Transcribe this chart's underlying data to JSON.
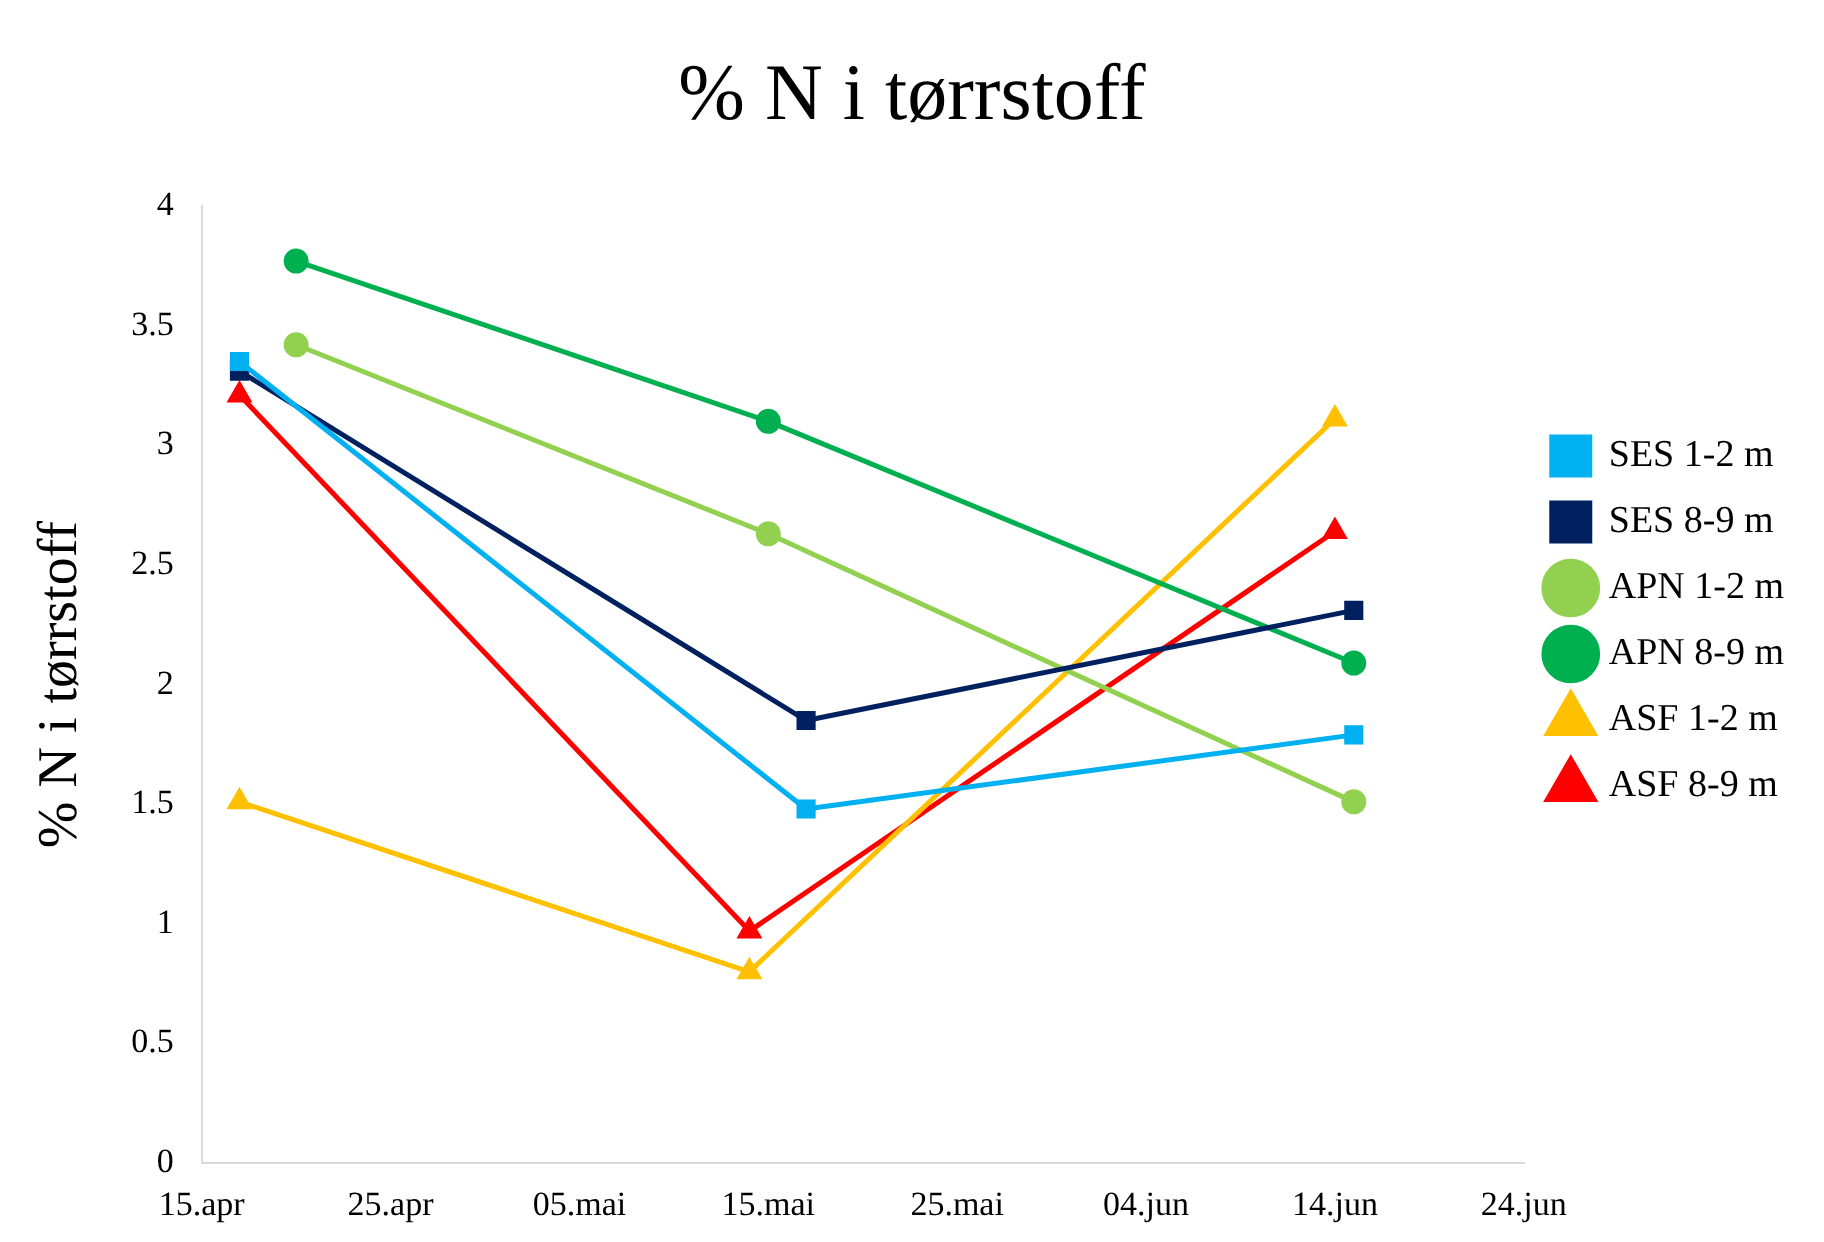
{
  "chart_data": {
    "type": "line",
    "title": "% N i tørrstoff",
    "ylabel": "% N i tørrstoff",
    "xlim": [
      "--04-15",
      "--06-24"
    ],
    "xticks": [
      {
        "value": "--04-15",
        "label": "15.apr"
      },
      {
        "value": "--04-25",
        "label": "25.apr"
      },
      {
        "value": "--05-05",
        "label": "05.mai"
      },
      {
        "value": "--05-15",
        "label": "15.mai"
      },
      {
        "value": "--05-25",
        "label": "25.mai"
      },
      {
        "value": "--06-04",
        "label": "04.jun"
      },
      {
        "value": "--06-14",
        "label": "14.jun"
      },
      {
        "value": "--06-24",
        "label": "24.jun"
      }
    ],
    "ylim": [
      0,
      4
    ],
    "yticks": [
      0,
      0.5,
      1,
      1.5,
      2,
      2.5,
      3,
      3.5,
      4
    ],
    "grid": false,
    "legend": "right",
    "line_style": "solid",
    "series": [
      {
        "name": "SES 1-2 m",
        "color": "#00b0f0",
        "marker": "square",
        "x": [
          "--04-17",
          "--05-17",
          "--06-15"
        ],
        "values": [
          3.35,
          1.48,
          1.79
        ]
      },
      {
        "name": "SES 8-9 m",
        "color": "#002060",
        "marker": "square",
        "x": [
          "--04-17",
          "--05-17",
          "--06-15"
        ],
        "values": [
          3.31,
          1.85,
          2.31
        ]
      },
      {
        "name": "APN 1-2 m",
        "color": "#92d050",
        "marker": "circle",
        "x": [
          "--04-20",
          "--05-15",
          "--06-15"
        ],
        "values": [
          3.42,
          2.63,
          1.51
        ]
      },
      {
        "name": "APN 8-9 m",
        "color": "#00b050",
        "marker": "circle",
        "x": [
          "--04-20",
          "--05-15",
          "--06-15"
        ],
        "values": [
          3.77,
          3.1,
          2.09
        ]
      },
      {
        "name": "ASF 1-2 m",
        "color": "#ffc000",
        "marker": "triangle",
        "x": [
          "--04-17",
          "--05-14",
          "--06-14"
        ],
        "values": [
          1.51,
          0.8,
          3.11
        ]
      },
      {
        "name": "ASF 8-9 m",
        "color": "#ff0000",
        "marker": "triangle",
        "x": [
          "--04-17",
          "--05-14",
          "--06-14"
        ],
        "values": [
          3.21,
          0.97,
          2.64
        ]
      }
    ]
  }
}
